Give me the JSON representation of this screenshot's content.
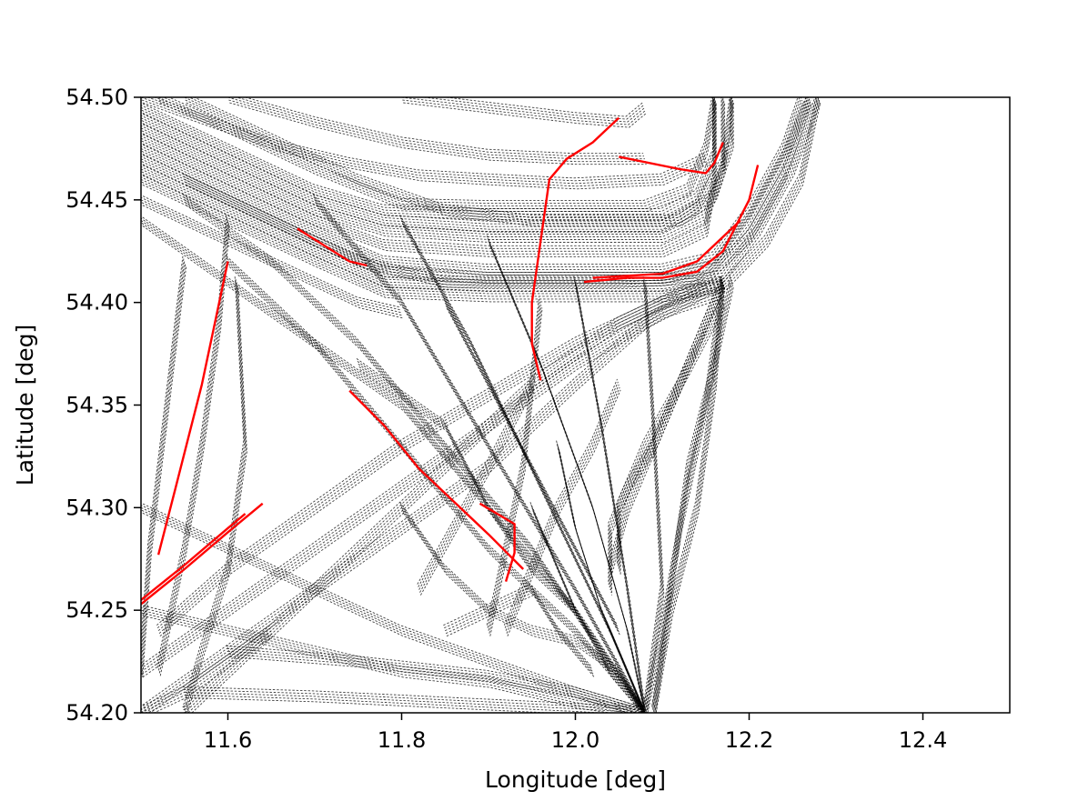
{
  "chart_data": {
    "type": "line",
    "title": "",
    "xlabel": "Longitude [deg]",
    "ylabel": "Latitude [deg]",
    "xlim": [
      11.5,
      12.5
    ],
    "ylim": [
      54.2,
      54.5
    ],
    "xticks": [
      11.6,
      11.8,
      12.0,
      12.2,
      12.4
    ],
    "yticks": [
      54.2,
      54.25,
      54.3,
      54.35,
      54.4,
      54.45,
      54.5
    ],
    "xtick_labels": [
      "11.6",
      "11.8",
      "12.0",
      "12.2",
      "12.4"
    ],
    "ytick_labels": [
      "54.20",
      "54.25",
      "54.30",
      "54.35",
      "54.40",
      "54.45",
      "54.50"
    ],
    "grid": false,
    "legend": "none",
    "colors": {
      "historical": "#000000",
      "highlighted": "#ff0000"
    },
    "series": [
      {
        "style": "dotted-black",
        "x": [
          11.5,
          11.6,
          11.7,
          11.78,
          11.9,
          12.0,
          12.1,
          12.14,
          12.17,
          12.17
        ],
        "y": [
          54.49,
          54.47,
          54.45,
          54.44,
          54.437,
          54.437,
          54.437,
          54.447,
          54.468,
          54.5
        ]
      },
      {
        "style": "dotted-black",
        "x": [
          11.5,
          11.6,
          11.7,
          11.78,
          11.9,
          12.0,
          12.1,
          12.14,
          12.16,
          12.16
        ],
        "y": [
          54.495,
          54.475,
          54.455,
          54.445,
          54.443,
          54.443,
          54.443,
          54.452,
          54.472,
          54.5
        ]
      },
      {
        "style": "dotted-black",
        "x": [
          11.5,
          11.6,
          11.7,
          11.78,
          11.9,
          12.0,
          12.1,
          12.15,
          12.17,
          12.18
        ],
        "y": [
          54.485,
          54.465,
          54.445,
          54.435,
          54.432,
          54.432,
          54.432,
          54.442,
          54.465,
          54.5
        ]
      },
      {
        "style": "dotted-black",
        "x": [
          11.52,
          11.6,
          11.7,
          11.8,
          11.9,
          12.0,
          12.08,
          12.13,
          12.15,
          12.16
        ],
        "y": [
          54.5,
          54.485,
          54.465,
          54.448,
          54.447,
          54.447,
          54.447,
          54.455,
          54.475,
          54.5
        ]
      },
      {
        "style": "dotted-black",
        "x": [
          11.5,
          11.6,
          11.7,
          11.78,
          11.9,
          12.0,
          12.1,
          12.15,
          12.16,
          12.16
        ],
        "y": [
          54.48,
          54.46,
          54.44,
          54.428,
          54.425,
          54.425,
          54.425,
          54.435,
          54.46,
          54.5
        ]
      },
      {
        "style": "dotted-black",
        "x": [
          11.55,
          11.65,
          11.75,
          11.85,
          11.95,
          12.05,
          12.12,
          12.16,
          12.18,
          12.18
        ],
        "y": [
          54.5,
          54.48,
          54.46,
          54.445,
          54.44,
          54.44,
          54.44,
          54.452,
          54.478,
          54.5
        ]
      },
      {
        "style": "dotted-black",
        "x": [
          11.5,
          11.6,
          11.7,
          11.78,
          11.9,
          12.0,
          12.1,
          12.16,
          12.2,
          12.24,
          12.27
        ],
        "y": [
          54.47,
          54.45,
          54.43,
          54.415,
          54.412,
          54.412,
          54.412,
          54.418,
          54.44,
          54.47,
          54.5
        ]
      },
      {
        "style": "dotted-black",
        "x": [
          11.5,
          11.6,
          11.7,
          11.78,
          11.9,
          12.0,
          12.1,
          12.16,
          12.2,
          12.24,
          12.26
        ],
        "y": [
          54.475,
          54.455,
          54.435,
          54.42,
          54.416,
          54.416,
          54.416,
          54.422,
          54.445,
          54.475,
          54.5
        ]
      },
      {
        "style": "dotted-black",
        "x": [
          11.5,
          11.6,
          11.7,
          11.78,
          11.9,
          12.0,
          12.1,
          12.17,
          12.21,
          12.25,
          12.28
        ],
        "y": [
          54.465,
          54.445,
          54.425,
          54.41,
          54.408,
          54.408,
          54.408,
          54.413,
          54.435,
          54.465,
          54.5
        ]
      },
      {
        "style": "dotted-black",
        "x": [
          11.5,
          11.6,
          11.7,
          11.78,
          11.9,
          12.0,
          12.1,
          12.17,
          12.22,
          12.26,
          12.28
        ],
        "y": [
          54.46,
          54.44,
          54.42,
          54.405,
          54.403,
          54.403,
          54.403,
          54.408,
          54.43,
          54.46,
          54.5
        ]
      },
      {
        "style": "dotted-black",
        "x": [
          11.55,
          11.65,
          11.75,
          11.85,
          11.95,
          12.05,
          12.15,
          12.2,
          12.24,
          12.27
        ],
        "y": [
          54.46,
          54.44,
          54.42,
          54.41,
          54.41,
          54.41,
          54.412,
          54.432,
          54.462,
          54.5
        ]
      },
      {
        "style": "dotted-black",
        "x": [
          11.5,
          11.58,
          11.66,
          11.74,
          11.82,
          11.9,
          12.0,
          12.1,
          12.15
        ],
        "y": [
          54.5,
          54.488,
          54.476,
          54.468,
          54.462,
          54.46,
          54.458,
          54.46,
          54.47
        ]
      },
      {
        "style": "dotted-black",
        "x": [
          11.6,
          11.7,
          11.8,
          11.9,
          12.0,
          12.08
        ],
        "y": [
          54.5,
          54.488,
          54.478,
          54.472,
          54.47,
          54.47
        ]
      },
      {
        "style": "dotted-black",
        "x": [
          11.8,
          11.9,
          12.0,
          12.06,
          12.08
        ],
        "y": [
          54.5,
          54.495,
          54.49,
          54.488,
          54.495
        ]
      },
      {
        "style": "dotted-black",
        "x": [
          11.5,
          11.6,
          11.7,
          11.75,
          11.8
        ],
        "y": [
          54.45,
          54.43,
          54.41,
          54.4,
          54.395
        ]
      },
      {
        "style": "dotted-black",
        "x": [
          11.5,
          11.6,
          11.7,
          11.8,
          11.9,
          12.0,
          12.08
        ],
        "y": [
          54.44,
          54.41,
          54.38,
          54.35,
          54.3,
          54.25,
          54.2
        ]
      },
      {
        "style": "dotted-black",
        "x": [
          11.55,
          11.65,
          11.75,
          11.85,
          11.95,
          12.03,
          12.08
        ],
        "y": [
          54.45,
          54.42,
          54.38,
          54.33,
          54.28,
          54.23,
          54.2
        ]
      },
      {
        "style": "dotted-black",
        "x": [
          11.5,
          11.6,
          11.7,
          11.8,
          11.9,
          12.0,
          12.08,
          12.17
        ],
        "y": [
          54.2,
          54.23,
          54.26,
          54.29,
          54.32,
          54.36,
          54.39,
          54.41
        ]
      },
      {
        "style": "dotted-black",
        "x": [
          11.5,
          11.6,
          11.7,
          11.8,
          11.9,
          12.0,
          12.1,
          12.17
        ],
        "y": [
          54.22,
          54.25,
          54.28,
          54.31,
          54.34,
          54.37,
          54.395,
          54.405
        ]
      },
      {
        "style": "dotted-black",
        "x": [
          11.52,
          11.6,
          11.7,
          11.8,
          11.9,
          12.0,
          12.1,
          12.17
        ],
        "y": [
          54.24,
          54.27,
          54.3,
          54.33,
          54.355,
          54.38,
          54.4,
          54.41
        ]
      },
      {
        "style": "dotted-black",
        "x": [
          11.55,
          11.65,
          11.75,
          11.85,
          11.95,
          12.05,
          12.15
        ],
        "y": [
          54.2,
          54.24,
          54.28,
          54.32,
          54.36,
          54.39,
          54.41
        ]
      },
      {
        "style": "dotted-black",
        "x": [
          11.6,
          11.7,
          11.8,
          11.9,
          12.0,
          12.08
        ],
        "y": [
          54.42,
          54.38,
          54.33,
          54.28,
          54.24,
          54.2
        ]
      },
      {
        "style": "dotted-black",
        "x": [
          11.7,
          11.8,
          11.9,
          12.0,
          12.08
        ],
        "y": [
          54.45,
          54.4,
          54.33,
          54.26,
          54.2
        ]
      },
      {
        "style": "dotted-black",
        "x": [
          11.8,
          11.88,
          11.96,
          12.04,
          12.08
        ],
        "y": [
          54.44,
          54.38,
          54.31,
          54.24,
          54.2
        ]
      },
      {
        "style": "dotted-black",
        "x": [
          11.9,
          11.96,
          12.02,
          12.06,
          12.08
        ],
        "y": [
          54.43,
          54.37,
          54.3,
          54.24,
          54.2
        ]
      },
      {
        "style": "dotted-black",
        "x": [
          12.0,
          12.03,
          12.06,
          12.08
        ],
        "y": [
          54.41,
          54.34,
          54.26,
          54.2
        ]
      },
      {
        "style": "dotted-black",
        "x": [
          12.08,
          12.09,
          12.1,
          12.08
        ],
        "y": [
          54.41,
          54.34,
          54.26,
          54.2
        ]
      },
      {
        "style": "dotted-black",
        "x": [
          12.17,
          12.15,
          12.12,
          12.1,
          12.08
        ],
        "y": [
          54.41,
          54.35,
          54.29,
          54.24,
          54.2
        ]
      },
      {
        "style": "dotted-black",
        "x": [
          12.17,
          12.16,
          12.14,
          12.11,
          12.09
        ],
        "y": [
          54.41,
          54.36,
          54.3,
          54.25,
          54.2
        ]
      },
      {
        "style": "dotted-black",
        "x": [
          12.18,
          12.16,
          12.13,
          12.11,
          12.09
        ],
        "y": [
          54.41,
          54.37,
          54.32,
          54.26,
          54.2
        ]
      },
      {
        "style": "dotted-black",
        "x": [
          12.17,
          12.13,
          12.09,
          12.06,
          12.04,
          12.04
        ],
        "y": [
          54.41,
          54.37,
          54.33,
          54.31,
          54.29,
          54.26
        ]
      },
      {
        "style": "dotted-black",
        "x": [
          12.17,
          12.12,
          12.08,
          12.05,
          12.05
        ],
        "y": [
          54.4,
          54.36,
          54.33,
          54.3,
          54.27
        ]
      },
      {
        "style": "dotted-black",
        "x": [
          11.5,
          11.6,
          11.7,
          11.8,
          11.9,
          12.0,
          12.08
        ],
        "y": [
          54.3,
          54.28,
          54.26,
          54.24,
          54.225,
          54.21,
          54.2
        ]
      },
      {
        "style": "dotted-black",
        "x": [
          11.5,
          11.6,
          11.7,
          11.8,
          11.9,
          12.0,
          12.08
        ],
        "y": [
          54.25,
          54.24,
          54.23,
          54.22,
          54.215,
          54.205,
          54.2
        ]
      },
      {
        "style": "dotted-black",
        "x": [
          11.55,
          11.7,
          11.85,
          12.0,
          12.08
        ],
        "y": [
          54.21,
          54.208,
          54.205,
          54.202,
          54.2
        ]
      },
      {
        "style": "dotted-black",
        "x": [
          11.6,
          11.75,
          11.9,
          12.0,
          12.08
        ],
        "y": [
          54.23,
          54.225,
          54.218,
          54.21,
          54.2
        ]
      },
      {
        "style": "dotted-black",
        "x": [
          11.5,
          11.55,
          11.6,
          11.65
        ],
        "y": [
          54.2,
          54.21,
          54.225,
          54.24
        ]
      },
      {
        "style": "dotted-black",
        "x": [
          11.61,
          11.62,
          11.6,
          11.57,
          11.55
        ],
        "y": [
          54.41,
          54.33,
          54.27,
          54.23,
          54.2
        ]
      },
      {
        "style": "dotted-black",
        "x": [
          11.6,
          11.59,
          11.57,
          11.55,
          11.52
        ],
        "y": [
          54.44,
          54.39,
          54.33,
          54.28,
          54.22
        ]
      },
      {
        "style": "dotted-black",
        "x": [
          11.5,
          11.51,
          11.53,
          11.55
        ],
        "y": [
          54.22,
          54.28,
          54.35,
          54.42
        ]
      },
      {
        "style": "dotted-black",
        "x": [
          11.8,
          11.85,
          11.9,
          11.95,
          12.0,
          12.05,
          12.08
        ],
        "y": [
          54.3,
          54.27,
          54.25,
          54.24,
          54.235,
          54.22,
          54.2
        ]
      },
      {
        "style": "dotted-black",
        "x": [
          11.82,
          11.86,
          11.9,
          11.95
        ],
        "y": [
          54.26,
          54.29,
          54.32,
          54.36
        ]
      },
      {
        "style": "dotted-black",
        "x": [
          11.9,
          11.92,
          11.94,
          11.95,
          11.96
        ],
        "y": [
          54.24,
          54.28,
          54.32,
          54.36,
          54.4
        ]
      },
      {
        "style": "dotted-black",
        "x": [
          11.92,
          11.95,
          11.98,
          12.02,
          12.05
        ],
        "y": [
          54.24,
          54.27,
          54.3,
          54.33,
          54.36
        ]
      },
      {
        "style": "dotted-black",
        "x": [
          11.98,
          12.0,
          12.03,
          12.06,
          12.08
        ],
        "y": [
          54.33,
          54.29,
          54.25,
          54.22,
          54.2
        ]
      },
      {
        "style": "dotted-black",
        "x": [
          11.95,
          11.97,
          12.0,
          12.04,
          12.08
        ],
        "y": [
          54.3,
          54.28,
          54.25,
          54.22,
          54.2
        ]
      },
      {
        "style": "dotted-black",
        "x": [
          11.85,
          11.9,
          11.95,
          11.98,
          12.02
        ],
        "y": [
          54.24,
          54.25,
          54.26,
          54.24,
          54.22
        ]
      },
      {
        "style": "dotted-black",
        "x": [
          11.75,
          11.85,
          11.9,
          11.95,
          12.0
        ],
        "y": [
          54.37,
          54.34,
          54.3,
          54.27,
          54.25
        ]
      },
      {
        "style": "dotted-black",
        "x": [
          11.85,
          11.9,
          11.95,
          12.0,
          12.05
        ],
        "y": [
          54.4,
          54.36,
          54.32,
          54.28,
          54.24
        ]
      },
      {
        "style": "dotted-black",
        "x": [
          12.17,
          12.14,
          12.1,
          12.06,
          12.04
        ],
        "y": [
          54.41,
          54.38,
          54.34,
          54.3,
          54.27
        ]
      }
    ],
    "highlighted_segments": [
      {
        "x": [
          11.52,
          11.54,
          11.57,
          11.6
        ],
        "y": [
          54.277,
          54.31,
          54.36,
          54.42
        ]
      },
      {
        "x": [
          11.5,
          11.55,
          11.6,
          11.64
        ],
        "y": [
          54.253,
          54.27,
          54.288,
          54.302
        ]
      },
      {
        "x": [
          11.5,
          11.55,
          11.6,
          11.62
        ],
        "y": [
          54.255,
          54.272,
          54.29,
          54.297
        ]
      },
      {
        "x": [
          11.74,
          11.78,
          11.82,
          11.86,
          11.9,
          11.94
        ],
        "y": [
          54.357,
          54.34,
          54.319,
          54.303,
          54.287,
          54.27
        ]
      },
      {
        "x": [
          11.89,
          11.93,
          11.93,
          11.92
        ],
        "y": [
          54.302,
          54.292,
          54.278,
          54.264
        ]
      },
      {
        "x": [
          11.96,
          11.95,
          11.95,
          11.96,
          11.97,
          11.99,
          12.02,
          12.05
        ],
        "y": [
          54.362,
          54.38,
          54.4,
          54.43,
          54.46,
          54.47,
          54.478,
          54.49
        ]
      },
      {
        "x": [
          11.68,
          11.71,
          11.74,
          11.76
        ],
        "y": [
          54.436,
          54.428,
          54.42,
          54.418
        ]
      },
      {
        "x": [
          12.01,
          12.06,
          12.1,
          12.14,
          12.17,
          12.2,
          12.21
        ],
        "y": [
          54.41,
          54.412,
          54.412,
          54.415,
          54.425,
          54.45,
          54.467
        ]
      },
      {
        "x": [
          12.02,
          12.06,
          12.1,
          12.14,
          12.17,
          12.19
        ],
        "y": [
          54.412,
          54.413,
          54.414,
          54.42,
          54.432,
          54.44
        ]
      },
      {
        "x": [
          12.05,
          12.12,
          12.15,
          12.16,
          12.17
        ],
        "y": [
          54.471,
          54.465,
          54.463,
          54.468,
          54.478
        ]
      }
    ]
  }
}
